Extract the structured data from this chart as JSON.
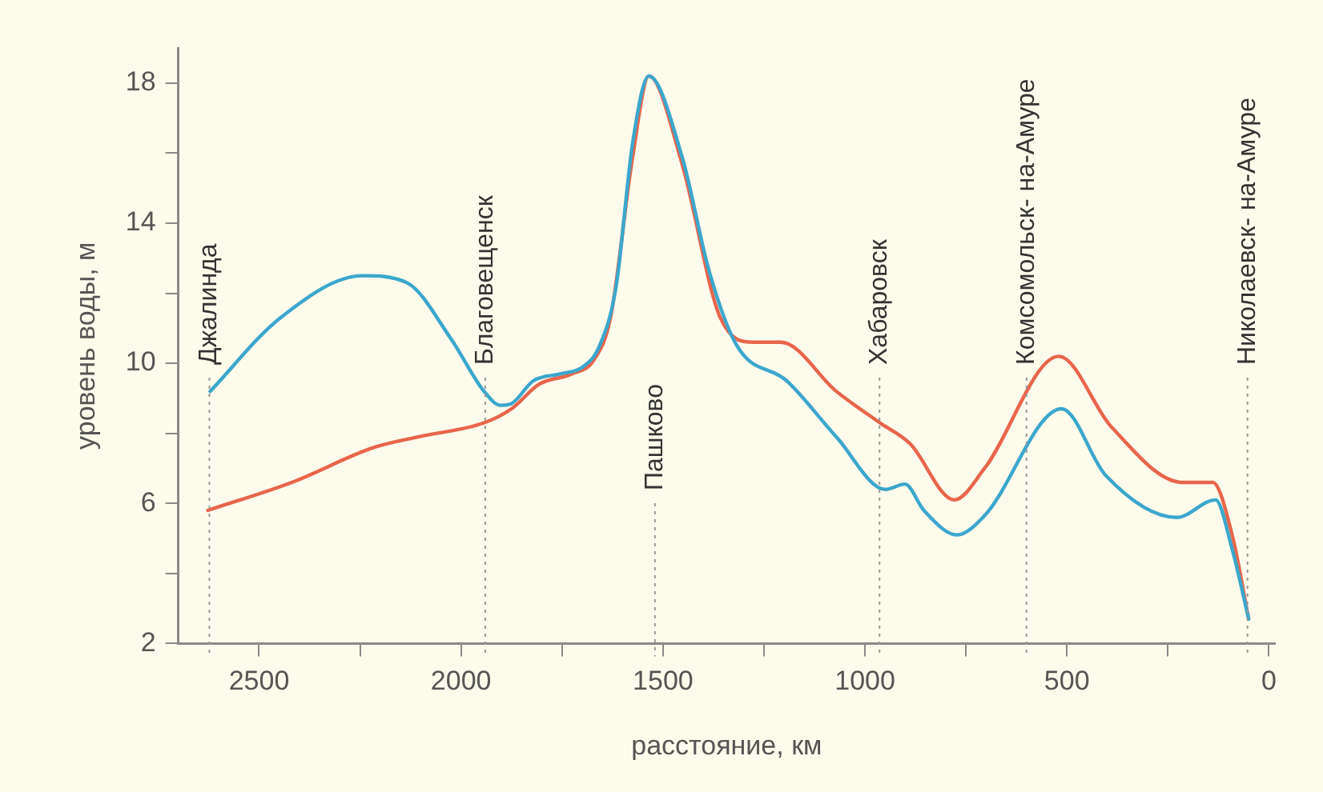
{
  "chart_data": {
    "type": "line",
    "xlabel": "расстояние, км",
    "ylabel": "уровень воды, м",
    "xlim": [
      2700,
      -15
    ],
    "ylim": [
      2,
      19
    ],
    "xticks": [
      {
        "value": 2500,
        "label": "2500"
      },
      {
        "value": 2250,
        "label": null
      },
      {
        "value": 2000,
        "label": "2000"
      },
      {
        "value": 1750,
        "label": null
      },
      {
        "value": 1500,
        "label": "1500"
      },
      {
        "value": 1250,
        "label": null
      },
      {
        "value": 1000,
        "label": "1000"
      },
      {
        "value": 750,
        "label": null
      },
      {
        "value": 500,
        "label": "500"
      },
      {
        "value": 250,
        "label": null
      },
      {
        "value": 0,
        "label": "0"
      }
    ],
    "yticks": [
      2,
      {
        "value": 4,
        "label": null
      },
      6,
      {
        "value": 8,
        "label": null
      },
      10,
      {
        "value": 12,
        "label": null
      },
      14,
      {
        "value": 16,
        "label": null
      },
      18
    ],
    "grid": false,
    "legend": false,
    "marker": "none",
    "line_style": "solid",
    "series": [
      {
        "color": "#3ba7cc",
        "x": [
          2621,
          2447,
          2243,
          2134,
          2025,
          1943,
          1902,
          1875,
          1821,
          1752,
          1698,
          1657,
          1616,
          1575,
          1535,
          1453,
          1385,
          1317,
          1194,
          1071,
          949,
          901,
          854,
          772,
          704,
          513,
          404,
          228,
          132,
          91,
          50
        ],
        "values": [
          9.2,
          11.3,
          12.5,
          12.3,
          10.7,
          9.2,
          8.8,
          8.85,
          9.5,
          9.7,
          9.9,
          10.5,
          12.2,
          16.3,
          18.2,
          15.9,
          12.6,
          10.5,
          9.5,
          7.9,
          6.4,
          6.55,
          5.8,
          5.1,
          5.65,
          8.7,
          6.8,
          5.6,
          6.1,
          4.7,
          2.7
        ]
      },
      {
        "color": "#e8654b",
        "x": [
          2627,
          2419,
          2215,
          2106,
          1943,
          1875,
          1807,
          1725,
          1671,
          1630,
          1575,
          1535,
          1453,
          1358,
          1276,
          1208,
          1071,
          963,
          888,
          779,
          704,
          520,
          391,
          214,
          139,
          91,
          50
        ],
        "values": [
          5.8,
          6.6,
          7.6,
          7.9,
          8.3,
          8.7,
          9.4,
          9.7,
          10.1,
          11.3,
          15.9,
          18.2,
          15.7,
          11.3,
          10.6,
          10.6,
          9.2,
          8.3,
          7.7,
          6.1,
          7.0,
          10.2,
          8.2,
          6.6,
          6.6,
          5.1,
          2.7
        ]
      }
    ],
    "ref_lines": [
      {
        "axis": "x",
        "value": 2623,
        "label": "Джалинда",
        "color": "#999999",
        "line_style": "dotted"
      },
      {
        "axis": "x",
        "value": 1940,
        "label": "Благовещенск",
        "color": "#999999",
        "line_style": "dotted"
      },
      {
        "axis": "x",
        "value": 1520,
        "label": "Пашково",
        "color": "#999999",
        "line_style": "dotted"
      },
      {
        "axis": "x",
        "value": 964,
        "label": "Хабаровск",
        "color": "#999999",
        "line_style": "dotted"
      },
      {
        "axis": "x",
        "value": 600,
        "label": "Комсомольск- на-Амуре",
        "color": "#999999",
        "line_style": "dotted"
      },
      {
        "axis": "x",
        "value": 53,
        "label": "Николаевск- на-Амуре",
        "color": "#999999",
        "line_style": "dotted"
      }
    ]
  }
}
